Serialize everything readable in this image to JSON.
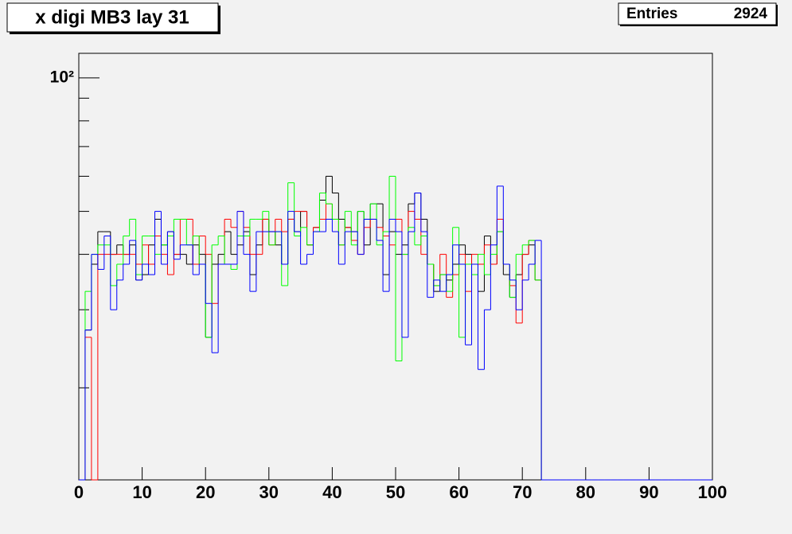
{
  "chart_data": {
    "type": "histogram",
    "title": "x digi MB3 lay 31",
    "stats": {
      "label": "Entries",
      "value": 2924
    },
    "log_y": true,
    "bins": [
      0,
      1,
      2,
      3,
      4,
      5,
      6,
      7,
      8,
      9,
      10,
      11,
      12,
      13,
      14,
      15,
      16,
      17,
      18,
      19,
      20,
      21,
      22,
      23,
      24,
      25,
      26,
      27,
      28,
      29,
      30,
      31,
      32,
      33,
      34,
      35,
      36,
      37,
      38,
      39,
      40,
      41,
      42,
      43,
      44,
      45,
      46,
      47,
      48,
      49,
      50,
      51,
      52,
      53,
      54,
      55,
      56,
      57,
      58,
      59,
      60,
      61,
      62,
      63,
      64,
      65,
      66,
      67,
      68,
      69,
      70,
      71,
      72,
      73,
      74,
      75,
      76,
      77,
      78,
      79,
      80,
      81,
      82,
      83,
      84,
      85,
      86,
      87,
      88,
      89,
      90,
      91,
      92,
      93,
      94,
      95,
      96,
      97,
      98,
      99,
      100
    ],
    "series": [
      {
        "color": "#000000",
        "values": [
          0,
          27,
          38,
          45,
          45,
          40,
          42,
          40,
          42,
          35,
          36,
          42,
          48,
          42,
          45,
          40,
          40,
          38,
          42,
          40,
          26,
          38,
          40,
          45,
          40,
          42,
          45,
          36,
          42,
          48,
          45,
          42,
          38,
          48,
          45,
          50,
          42,
          46,
          53,
          60,
          55,
          48,
          46,
          45,
          50,
          42,
          52,
          52,
          36,
          45,
          40,
          42,
          52,
          55,
          48,
          38,
          33,
          36,
          35,
          38,
          42,
          40,
          38,
          33,
          44,
          38,
          45,
          36,
          32,
          36,
          40,
          42,
          35,
          0,
          0,
          0,
          0,
          0,
          0,
          0,
          0,
          0,
          0,
          0,
          0,
          0,
          0,
          0,
          0,
          0,
          0,
          0,
          0,
          0,
          0,
          0,
          0,
          0,
          0,
          0
        ]
      },
      {
        "color": "#ff0000",
        "values": [
          0,
          26,
          0,
          40,
          40,
          40,
          40,
          40,
          40,
          38,
          42,
          38,
          44,
          40,
          36,
          40,
          48,
          48,
          38,
          44,
          40,
          31,
          38,
          48,
          46,
          50,
          46,
          40,
          40,
          48,
          42,
          48,
          45,
          48,
          50,
          50,
          42,
          46,
          48,
          52,
          48,
          42,
          46,
          43,
          40,
          46,
          48,
          46,
          44,
          42,
          48,
          40,
          50,
          48,
          40,
          38,
          34,
          40,
          32,
          36,
          40,
          33,
          40,
          38,
          42,
          38,
          48,
          38,
          34,
          28,
          40,
          43,
          35,
          0,
          0,
          0,
          0,
          0,
          0,
          0,
          0,
          0,
          0,
          0,
          0,
          0,
          0,
          0,
          0,
          0,
          0,
          0,
          0,
          0,
          0,
          0,
          0,
          0,
          0,
          0
        ]
      },
      {
        "color": "#00ff00",
        "values": [
          0,
          33,
          40,
          42,
          42,
          34,
          38,
          44,
          48,
          36,
          44,
          44,
          40,
          42,
          44,
          48,
          48,
          42,
          44,
          38,
          26,
          42,
          44,
          38,
          37,
          44,
          44,
          48,
          48,
          50,
          42,
          45,
          34,
          58,
          44,
          46,
          42,
          45,
          55,
          52,
          48,
          42,
          50,
          42,
          50,
          48,
          52,
          42,
          45,
          60,
          23,
          40,
          46,
          42,
          44,
          38,
          34,
          36,
          33,
          46,
          26,
          38,
          36,
          40,
          36,
          40,
          45,
          38,
          32,
          40,
          42,
          43,
          35,
          0,
          0,
          0,
          0,
          0,
          0,
          0,
          0,
          0,
          0,
          0,
          0,
          0,
          0,
          0,
          0,
          0,
          0,
          0,
          0,
          0,
          0,
          0,
          0,
          0,
          0,
          0
        ]
      },
      {
        "color": "#0000ff",
        "values": [
          0,
          27,
          40,
          37,
          44,
          30,
          35,
          38,
          43,
          35,
          38,
          36,
          50,
          38,
          45,
          39,
          42,
          42,
          36,
          38,
          31,
          24,
          38,
          38,
          38,
          50,
          40,
          33,
          45,
          45,
          45,
          45,
          38,
          50,
          45,
          38,
          40,
          45,
          45,
          48,
          45,
          38,
          45,
          45,
          40,
          48,
          48,
          43,
          33,
          48,
          45,
          26,
          45,
          55,
          45,
          32,
          35,
          33,
          36,
          42,
          38,
          25,
          38,
          22,
          30,
          42,
          57,
          38,
          35,
          30,
          35,
          38,
          43,
          0,
          0,
          0,
          0,
          0,
          0,
          0,
          0,
          0,
          0,
          0,
          0,
          0,
          0,
          0,
          0,
          0,
          0,
          0,
          0,
          0,
          0,
          0,
          0,
          0,
          0,
          0
        ]
      }
    ],
    "xlim": [
      0,
      100
    ],
    "xticks": [
      0,
      10,
      20,
      30,
      40,
      50,
      60,
      70,
      80,
      90,
      100
    ],
    "ylim": [
      12.4,
      113.6
    ],
    "yticks": [
      {
        "value": 100,
        "label": "10²"
      }
    ],
    "yminor_ticks": [
      20,
      30,
      40,
      50,
      60,
      70,
      80,
      90
    ]
  }
}
